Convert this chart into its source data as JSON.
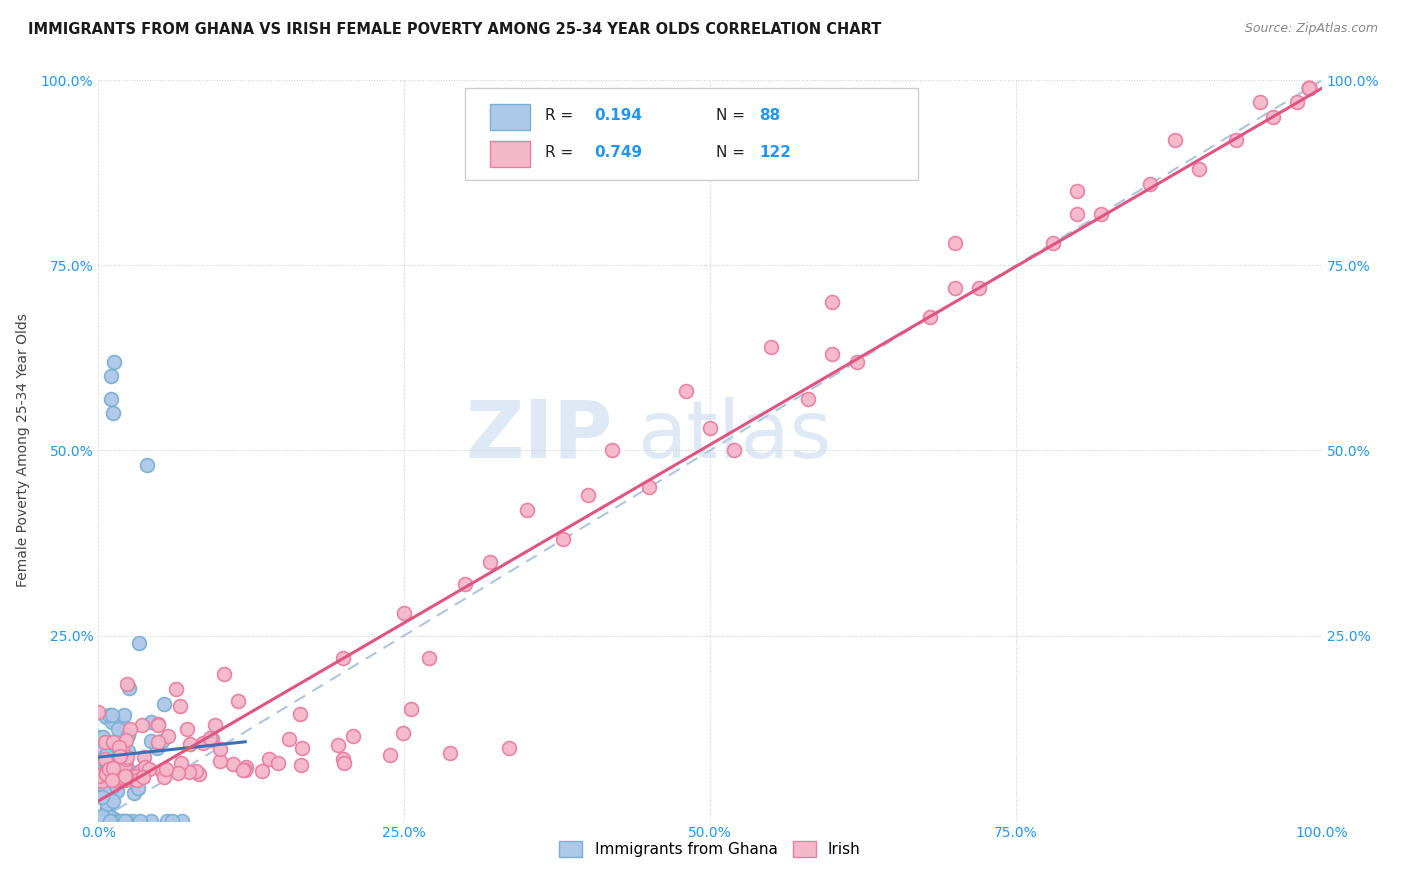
{
  "title": "IMMIGRANTS FROM GHANA VS IRISH FEMALE POVERTY AMONG 25-34 YEAR OLDS CORRELATION CHART",
  "source": "Source: ZipAtlas.com",
  "ylabel": "Female Poverty Among 25-34 Year Olds",
  "xlim": [
    0,
    1
  ],
  "ylim": [
    0,
    1
  ],
  "xticks": [
    0,
    0.25,
    0.5,
    0.75,
    1.0
  ],
  "yticks": [
    0,
    0.25,
    0.5,
    0.75,
    1.0
  ],
  "xticklabels": [
    "0.0%",
    "25.0%",
    "50.0%",
    "75.0%",
    "100.0%"
  ],
  "yticklabels": [
    "",
    "25.0%",
    "50.0%",
    "75.0%",
    "100.0%"
  ],
  "right_yticklabels": [
    "",
    "25.0%",
    "50.0%",
    "75.0%",
    "100.0%"
  ],
  "watermark_zip": "ZIP",
  "watermark_atlas": "atlas",
  "ghana_color": "#adc8e8",
  "ghana_edge": "#7aafd4",
  "irish_color": "#f5b8cb",
  "irish_edge": "#e87fa0",
  "ghana_line_color": "#3a6fba",
  "irish_line_color": "#e05580",
  "diag_line_color": "#a0bcd8",
  "background_color": "#ffffff",
  "title_fontsize": 10.5,
  "source_fontsize": 9,
  "tick_color": "#2196f3",
  "tick_fontsize": 10,
  "ylabel_fontsize": 10,
  "legend_fontsize": 11,
  "legend_r1": "R = 0.194",
  "legend_n1": "N =  88",
  "legend_r2": "R = 0.749",
  "legend_n2": "N = 122",
  "scatter_size": 100,
  "scatter_linewidth": 1.2,
  "ghana_n": 88,
  "irish_n": 122,
  "ghana_seed": 7,
  "irish_seed": 13
}
